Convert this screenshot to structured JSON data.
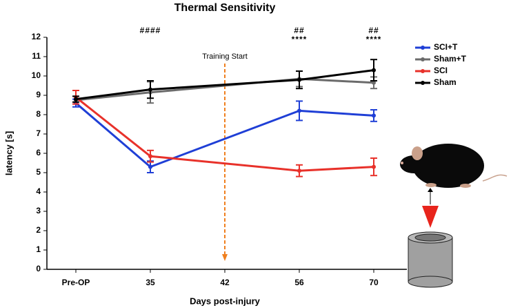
{
  "chart_data": {
    "type": "line",
    "title": "Thermal Sensitivity",
    "x_label": "Days post-injury",
    "y_label": "latency [s]",
    "categories": [
      "Pre-OP",
      "35",
      "42",
      "56",
      "70"
    ],
    "ylim": [
      0,
      12
    ],
    "yticks": [
      0,
      1,
      2,
      3,
      4,
      5,
      6,
      7,
      8,
      9,
      10,
      11,
      12
    ],
    "series": [
      {
        "name": "SCI+T",
        "color": "#1f3fd6",
        "values": [
          8.6,
          5.3,
          null,
          8.2,
          7.95
        ],
        "errors": [
          0.2,
          0.3,
          null,
          0.5,
          0.3
        ]
      },
      {
        "name": "Sham+T",
        "color": "#6b6b6b",
        "values": [
          8.75,
          9.15,
          null,
          9.85,
          9.65
        ],
        "errors": [
          0.2,
          0.55,
          null,
          0.4,
          0.3
        ]
      },
      {
        "name": "SCI",
        "color": "#e8312a",
        "values": [
          8.9,
          5.85,
          null,
          5.1,
          5.3
        ],
        "errors": [
          0.35,
          0.3,
          null,
          0.3,
          0.45
        ]
      },
      {
        "name": "Sham",
        "color": "#000000",
        "values": [
          8.8,
          9.3,
          null,
          9.8,
          10.3
        ],
        "errors": [
          0.15,
          0.45,
          null,
          0.45,
          0.55
        ]
      }
    ],
    "annotations": [
      {
        "x": "35",
        "lines": [
          "####"
        ]
      },
      {
        "x": "56",
        "lines": [
          "##",
          "****"
        ]
      },
      {
        "x": "70",
        "lines": [
          "##",
          "****"
        ]
      }
    ],
    "marker_line": {
      "x": "42",
      "text": "Training Start",
      "color": "#f07f1e"
    }
  }
}
